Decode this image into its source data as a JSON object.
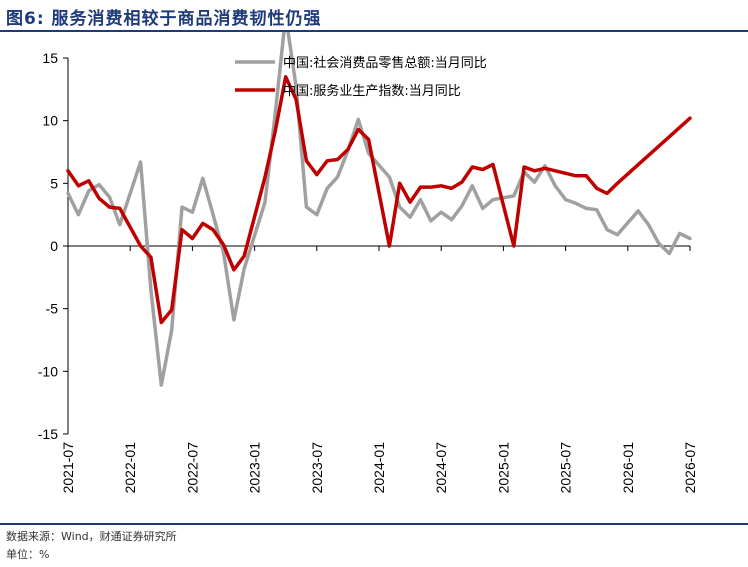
{
  "figure": {
    "title": "图6:  服务消费相较于商品消费韧性仍强",
    "source": "数据来源：Wind，财通证券研究所",
    "unit": "单位：%"
  },
  "colors": {
    "title": "#1f3a7a",
    "retail_series": "#a0a0a0",
    "services_series": "#c00000"
  },
  "chart_data": {
    "type": "line",
    "x": [
      "2021-07",
      "2021-08",
      "2021-09",
      "2021-10",
      "2021-11",
      "2021-12",
      "2022-01",
      "2022-02",
      "2022-03",
      "2022-04",
      "2022-05",
      "2022-06",
      "2022-07",
      "2022-08",
      "2022-09",
      "2022-10",
      "2022-11",
      "2022-12",
      "2023-01",
      "2023-02",
      "2023-03",
      "2023-04",
      "2023-05",
      "2023-06",
      "2023-07",
      "2023-08",
      "2023-09",
      "2023-10",
      "2023-11",
      "2023-12",
      "2024-01",
      "2024-02",
      "2024-03",
      "2024-04",
      "2024-05",
      "2024-06",
      "2024-07",
      "2024-08",
      "2024-09",
      "2024-10",
      "2024-11",
      "2024-12",
      "2025-01",
      "2025-02",
      "2025-03",
      "2025-04",
      "2025-05",
      "2025-06",
      "2025-07",
      "2025-08",
      "2025-09",
      "2025-10",
      "2025-11",
      "2025-12",
      "2026-01",
      "2026-02",
      "2026-03",
      "2026-04",
      "2026-05",
      "2026-06",
      "2026-07"
    ],
    "x_tick_labels": [
      "2021-07",
      "2022-01",
      "2022-07",
      "2023-01",
      "2023-07",
      "2024-01",
      "2024-07",
      "2025-01",
      "2025-07",
      "2026-01",
      "2026-07"
    ],
    "ylim": [
      -15,
      15
    ],
    "yticks": [
      -15,
      -10,
      -5,
      0,
      5,
      10,
      15
    ],
    "grid": false,
    "legend_position": "top",
    "series": [
      {
        "name": "中国:社会消费品零售总额:当月同比",
        "color": "#a0a0a0",
        "values": [
          4.2,
          2.5,
          4.4,
          4.9,
          3.9,
          1.7,
          null,
          6.7,
          -3.5,
          -11.1,
          -6.7,
          3.1,
          2.7,
          5.4,
          2.5,
          -0.5,
          -5.9,
          -1.8,
          null,
          3.5,
          10.6,
          18.4,
          12.7,
          3.1,
          2.5,
          4.6,
          5.5,
          7.6,
          10.1,
          7.4,
          null,
          5.5,
          3.1,
          2.3,
          3.7,
          2.0,
          2.7,
          2.1,
          3.2,
          4.8,
          3.0,
          3.7,
          null,
          4.0,
          5.9,
          5.1,
          6.4,
          4.8,
          3.7,
          3.4,
          3.0,
          2.9,
          1.3,
          0.9,
          null,
          2.8,
          1.7,
          0.2,
          -0.6,
          1.0,
          0.6
        ]
      },
      {
        "name": "中国:服务业生产指数:当月同比",
        "color": "#c00000",
        "values": [
          6.0,
          4.8,
          5.2,
          3.8,
          3.1,
          3.0,
          null,
          0.0,
          -0.9,
          -6.1,
          -5.1,
          1.3,
          0.6,
          1.8,
          1.3,
          0.1,
          -1.9,
          -0.8,
          null,
          5.5,
          9.2,
          13.5,
          11.7,
          6.8,
          5.7,
          6.8,
          6.9,
          7.7,
          9.3,
          8.5,
          null,
          0.0,
          5.0,
          3.5,
          4.7,
          4.7,
          4.8,
          4.6,
          5.1,
          6.3,
          6.1,
          6.5,
          null,
          0.0,
          6.3,
          6.0,
          6.2,
          6.0,
          5.8,
          5.6,
          5.6,
          4.6,
          4.2,
          5.0,
          null,
          null,
          null,
          null,
          null,
          null,
          10.2
        ]
      }
    ]
  }
}
